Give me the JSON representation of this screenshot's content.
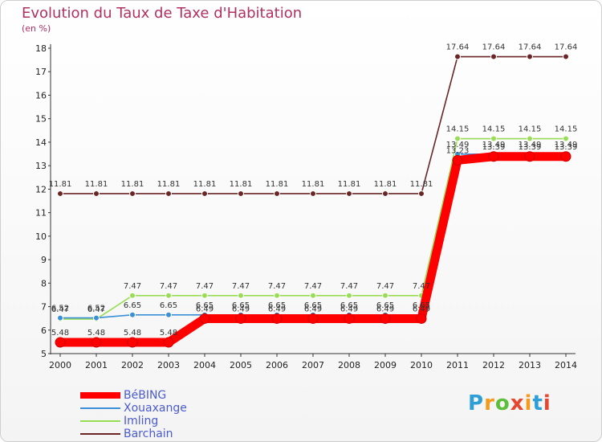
{
  "title": "Evolution du Taux de Taxe d'Habitation",
  "unit": "(en %)",
  "brand": {
    "text": "Proxiti",
    "letter_colors": [
      "#2e9fd6",
      "#f59b1b",
      "#5bbf3a",
      "#e8452f",
      "#f59b1b",
      "#2e9fd6",
      "#e8452f"
    ]
  },
  "chart_data": {
    "type": "line",
    "categories": [
      "2000",
      "2001",
      "2002",
      "2003",
      "2004",
      "2005",
      "2006",
      "2007",
      "2008",
      "2009",
      "2010",
      "2011",
      "2012",
      "2013",
      "2014"
    ],
    "ylim": [
      5,
      18
    ],
    "yticks": [
      5,
      6,
      7,
      8,
      9,
      10,
      11,
      12,
      13,
      14,
      15,
      16,
      17,
      18
    ],
    "grid": false,
    "legend_position": "bottom-left",
    "series": [
      {
        "name": "BéBING",
        "color": "#ff0000",
        "values": [
          5.48,
          5.48,
          5.48,
          5.48,
          6.49,
          6.49,
          6.49,
          6.49,
          6.49,
          6.49,
          6.49,
          13.23,
          13.39,
          13.39,
          13.39
        ],
        "labels": [
          "5.48",
          "5.48",
          "5.48",
          "5.48",
          "6.49",
          "6.49",
          "6.49",
          "6.49",
          "6.49",
          "6.49",
          "6.49",
          "13.23",
          "13.39",
          "13.39",
          "13.39"
        ]
      },
      {
        "name": "Xouaxange",
        "color": "#3a8fd6",
        "values": [
          6.52,
          6.52,
          6.65,
          6.65,
          6.65,
          6.65,
          6.65,
          6.65,
          6.65,
          6.65,
          6.65,
          13.49,
          13.49,
          13.49,
          13.49
        ],
        "labels": [
          "6.52",
          "6.52",
          "6.65",
          "6.65",
          "6.65",
          "6.65",
          "6.65",
          "6.65",
          "6.65",
          "6.65",
          "6.65",
          "13.49",
          "13.49",
          "13.49",
          "13.49"
        ]
      },
      {
        "name": "Imling",
        "color": "#99dd55",
        "values": [
          6.47,
          6.47,
          7.47,
          7.47,
          7.47,
          7.47,
          7.47,
          7.47,
          7.47,
          7.47,
          7.47,
          14.15,
          14.15,
          14.15,
          14.15
        ],
        "labels": [
          "6.47",
          "6.47",
          "7.47",
          "7.47",
          "7.47",
          "7.47",
          "7.47",
          "7.47",
          "7.47",
          "7.47",
          "7.47",
          "14.15",
          "14.15",
          "14.15",
          "14.15"
        ]
      },
      {
        "name": "Barchain",
        "color": "#6b2525",
        "values": [
          11.81,
          11.81,
          11.81,
          11.81,
          11.81,
          11.81,
          11.81,
          11.81,
          11.81,
          11.81,
          11.81,
          17.64,
          17.64,
          17.64,
          17.64
        ],
        "labels": [
          "11.81",
          "11.81",
          "11.81",
          "11.81",
          "11.81",
          "11.81",
          "11.81",
          "11.81",
          "11.81",
          "11.81",
          "11.81",
          "17.64",
          "17.64",
          "17.64",
          "17.64"
        ]
      }
    ]
  }
}
